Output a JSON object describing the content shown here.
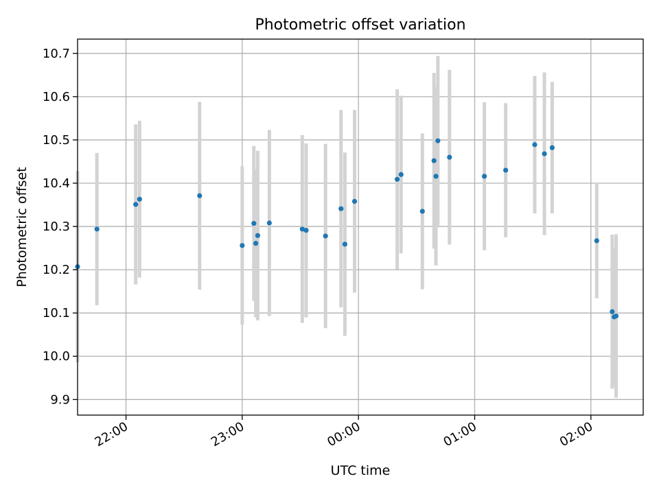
{
  "chart_data": {
    "type": "scatter",
    "title": "Photometric offset variation",
    "xlabel": "UTC time",
    "ylabel": "Photometric offset",
    "x_ticks": [
      "22:00",
      "23:00",
      "00:00",
      "01:00",
      "02:00"
    ],
    "y_ticks": [
      "9.9",
      "10.0",
      "10.1",
      "10.2",
      "10.3",
      "10.4",
      "10.5",
      "10.6",
      "10.7"
    ],
    "xlim": [
      "21:35",
      "02:27"
    ],
    "ylim": [
      9.864,
      10.733
    ],
    "grid": true,
    "colors": {
      "points": "#1f77b4",
      "errorbars": "#d3d3d3",
      "grid": "#b0b0b0"
    },
    "points": [
      {
        "t": "21:35",
        "y": 10.207,
        "err": 0.221
      },
      {
        "t": "21:45",
        "y": 10.294,
        "err": 0.176
      },
      {
        "t": "22:05",
        "y": 10.351,
        "err": 0.185
      },
      {
        "t": "22:07",
        "y": 10.363,
        "err": 0.181
      },
      {
        "t": "22:38",
        "y": 10.371,
        "err": 0.217
      },
      {
        "t": "23:00",
        "y": 10.256,
        "err": 0.183
      },
      {
        "t": "23:06",
        "y": 10.307,
        "err": 0.179
      },
      {
        "t": "23:07",
        "y": 10.261,
        "err": 0.171
      },
      {
        "t": "23:08",
        "y": 10.279,
        "err": 0.196
      },
      {
        "t": "23:14",
        "y": 10.308,
        "err": 0.215
      },
      {
        "t": "23:31",
        "y": 10.294,
        "err": 0.217
      },
      {
        "t": "23:33",
        "y": 10.291,
        "err": 0.201
      },
      {
        "t": "23:43",
        "y": 10.278,
        "err": 0.213
      },
      {
        "t": "23:51",
        "y": 10.341,
        "err": 0.228
      },
      {
        "t": "23:53",
        "y": 10.259,
        "err": 0.212
      },
      {
        "t": "23:58",
        "y": 10.358,
        "err": 0.211
      },
      {
        "t": "00:20",
        "y": 10.409,
        "err": 0.208
      },
      {
        "t": "00:22",
        "y": 10.42,
        "err": 0.182
      },
      {
        "t": "00:33",
        "y": 10.335,
        "err": 0.18
      },
      {
        "t": "00:39",
        "y": 10.452,
        "err": 0.203
      },
      {
        "t": "00:40",
        "y": 10.416,
        "err": 0.206
      },
      {
        "t": "00:41",
        "y": 10.498,
        "err": 0.196
      },
      {
        "t": "00:47",
        "y": 10.46,
        "err": 0.202
      },
      {
        "t": "01:05",
        "y": 10.416,
        "err": 0.171
      },
      {
        "t": "01:16",
        "y": 10.43,
        "err": 0.155
      },
      {
        "t": "01:31",
        "y": 10.489,
        "err": 0.159
      },
      {
        "t": "01:36",
        "y": 10.468,
        "err": 0.188
      },
      {
        "t": "01:40",
        "y": 10.482,
        "err": 0.152
      },
      {
        "t": "02:03",
        "y": 10.267,
        "err": 0.133
      },
      {
        "t": "02:11",
        "y": 10.103,
        "err": 0.178
      },
      {
        "t": "02:12",
        "y": 10.091,
        "err": 0.161
      },
      {
        "t": "02:13",
        "y": 10.093,
        "err": 0.189
      }
    ]
  }
}
